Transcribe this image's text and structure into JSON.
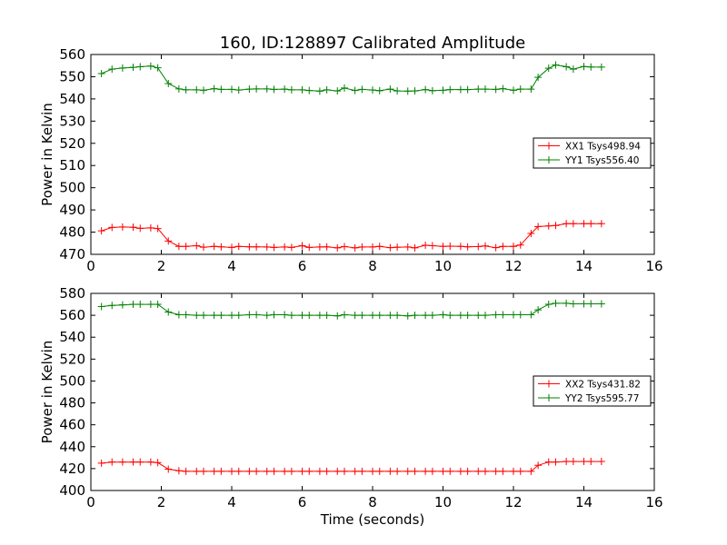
{
  "chart_data": [
    {
      "type": "line",
      "title": "160, ID:128897 Calibrated Amplitude",
      "xlabel": "",
      "ylabel": "Power in Kelvin",
      "xlim": [
        0,
        16
      ],
      "ylim": [
        470,
        560
      ],
      "xticks": [
        "0",
        "2",
        "4",
        "6",
        "8",
        "10",
        "12",
        "14",
        "16"
      ],
      "yticks": [
        "470",
        "480",
        "490",
        "500",
        "510",
        "520",
        "530",
        "540",
        "550",
        "560"
      ],
      "legend_position": "right",
      "x": [
        0.3,
        0.6,
        0.9,
        1.2,
        1.4,
        1.7,
        1.9,
        2.2,
        2.5,
        2.7,
        3.0,
        3.2,
        3.5,
        3.7,
        4.0,
        4.2,
        4.5,
        4.7,
        5.0,
        5.2,
        5.5,
        5.7,
        6.0,
        6.2,
        6.5,
        6.7,
        7.0,
        7.2,
        7.5,
        7.7,
        8.0,
        8.2,
        8.5,
        8.7,
        9.0,
        9.2,
        9.5,
        9.7,
        10.0,
        10.2,
        10.5,
        10.7,
        11.0,
        11.2,
        11.5,
        11.7,
        12.0,
        12.2,
        12.5,
        12.7,
        13.0,
        13.2,
        13.5,
        13.7,
        14.0,
        14.2,
        14.5
      ],
      "series": [
        {
          "name": "XX1 Tsys498.94",
          "color": "#ff0000",
          "values": [
            480.6,
            482.1,
            482.3,
            482.2,
            481.7,
            481.9,
            481.6,
            476.0,
            473.6,
            473.6,
            473.9,
            473.2,
            473.6,
            473.4,
            473.1,
            473.6,
            473.4,
            473.4,
            473.3,
            473.1,
            473.3,
            473.1,
            473.9,
            473.1,
            473.3,
            473.4,
            472.9,
            473.5,
            472.9,
            473.3,
            473.3,
            473.6,
            473.0,
            473.2,
            473.3,
            472.9,
            474.1,
            473.9,
            473.6,
            473.7,
            473.6,
            473.4,
            473.5,
            473.8,
            473.0,
            473.6,
            473.6,
            474.2,
            479.4,
            482.5,
            482.8,
            483.0,
            483.8,
            483.8,
            483.8,
            483.8,
            483.8
          ]
        },
        {
          "name": "YY1 Tsys556.40",
          "color": "#008000",
          "values": [
            551.4,
            553.4,
            553.9,
            554.2,
            554.5,
            554.8,
            554.0,
            546.9,
            544.5,
            544.1,
            544.1,
            543.9,
            544.6,
            544.3,
            544.3,
            544.0,
            544.4,
            544.5,
            544.5,
            544.3,
            544.4,
            544.1,
            544.1,
            543.8,
            543.5,
            544.1,
            543.6,
            544.9,
            543.8,
            544.3,
            544.0,
            543.7,
            544.4,
            543.6,
            543.5,
            543.6,
            544.2,
            543.7,
            543.9,
            544.2,
            544.2,
            544.2,
            544.4,
            544.4,
            544.3,
            544.6,
            543.9,
            544.4,
            544.4,
            549.7,
            553.8,
            555.3,
            554.5,
            553.4,
            554.6,
            554.4,
            554.3
          ]
        }
      ]
    },
    {
      "type": "line",
      "title": "",
      "xlabel": "Time (seconds)",
      "ylabel": "Power in Kelvin",
      "xlim": [
        0,
        16
      ],
      "ylim": [
        400,
        580
      ],
      "xticks": [
        "0",
        "2",
        "4",
        "6",
        "8",
        "10",
        "12",
        "14",
        "16"
      ],
      "yticks": [
        "400",
        "420",
        "440",
        "460",
        "480",
        "500",
        "520",
        "540",
        "560",
        "580"
      ],
      "legend_position": "right",
      "x": [
        0.3,
        0.6,
        0.9,
        1.2,
        1.4,
        1.7,
        1.9,
        2.2,
        2.5,
        2.7,
        3.0,
        3.2,
        3.5,
        3.7,
        4.0,
        4.2,
        4.5,
        4.7,
        5.0,
        5.2,
        5.5,
        5.7,
        6.0,
        6.2,
        6.5,
        6.7,
        7.0,
        7.2,
        7.5,
        7.7,
        8.0,
        8.2,
        8.5,
        8.7,
        9.0,
        9.2,
        9.5,
        9.7,
        10.0,
        10.2,
        10.5,
        10.7,
        11.0,
        11.2,
        11.5,
        11.7,
        12.0,
        12.2,
        12.5,
        12.7,
        13.0,
        13.2,
        13.5,
        13.7,
        14.0,
        14.2,
        14.5
      ],
      "series": [
        {
          "name": "XX2 Tsys431.82",
          "color": "#ff0000",
          "values": [
            425.0,
            426.0,
            426.0,
            426.0,
            426.0,
            426.0,
            425.5,
            419.5,
            418.0,
            417.5,
            417.5,
            417.5,
            417.5,
            417.5,
            417.5,
            417.5,
            417.5,
            417.5,
            417.5,
            417.5,
            417.5,
            417.5,
            417.5,
            417.5,
            417.5,
            417.5,
            417.5,
            417.5,
            417.5,
            417.5,
            417.5,
            417.5,
            417.5,
            417.5,
            417.5,
            417.5,
            417.5,
            417.5,
            417.5,
            417.5,
            417.5,
            417.5,
            417.5,
            417.5,
            417.5,
            417.5,
            417.5,
            417.5,
            417.5,
            423.0,
            426.0,
            426.0,
            426.5,
            426.5,
            426.5,
            426.5,
            426.5
          ]
        },
        {
          "name": "YY2 Tsys595.77",
          "color": "#008000",
          "values": [
            568.0,
            569.0,
            569.5,
            570.0,
            570.0,
            570.0,
            570.0,
            563.0,
            560.5,
            560.5,
            560.0,
            560.0,
            560.0,
            560.0,
            560.0,
            560.0,
            560.5,
            560.5,
            560.0,
            560.5,
            560.5,
            560.0,
            560.0,
            560.0,
            560.0,
            560.0,
            559.5,
            560.5,
            560.0,
            560.0,
            560.0,
            560.0,
            560.0,
            560.0,
            559.5,
            560.0,
            560.0,
            560.0,
            560.5,
            560.0,
            560.0,
            560.0,
            560.0,
            560.0,
            560.5,
            560.5,
            560.5,
            560.5,
            560.5,
            565.0,
            570.0,
            571.0,
            571.0,
            570.5,
            570.5,
            570.5,
            570.5
          ]
        }
      ]
    }
  ]
}
